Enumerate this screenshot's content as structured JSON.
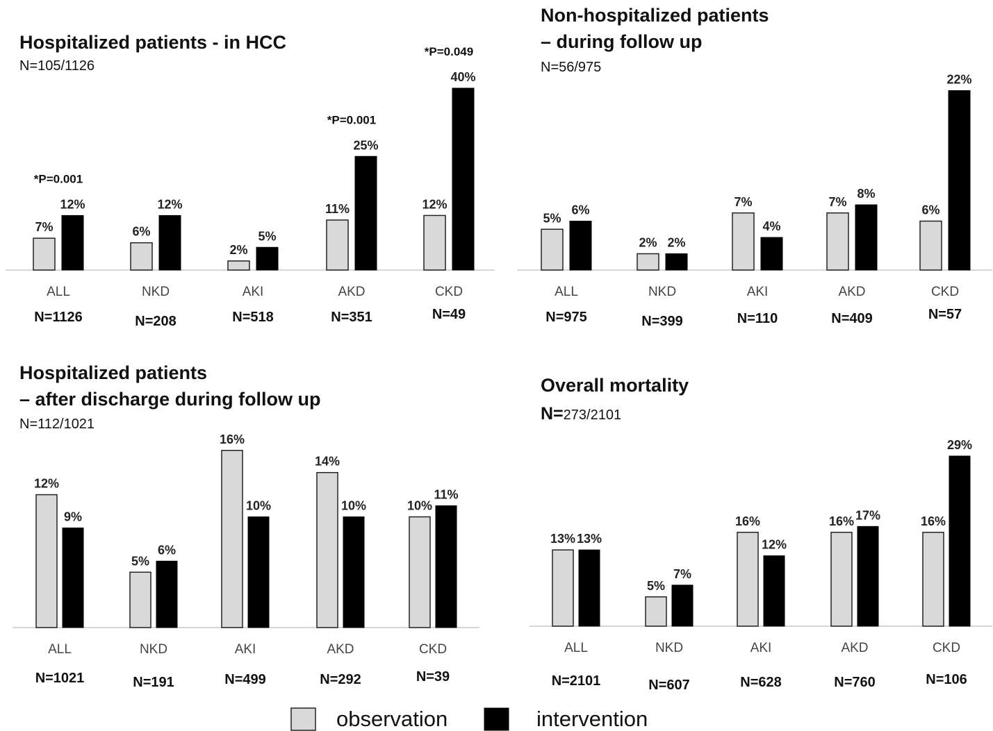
{
  "legend": [
    {
      "label": "observation",
      "color": "#d9d9d9"
    },
    {
      "label": "intervention",
      "color": "#000000"
    }
  ],
  "chart_data": [
    {
      "type": "bar",
      "title": "Hospitalized patients - in HCC",
      "subtitle": "N=105/1126",
      "categories": [
        "ALL",
        "NKD",
        "AKI",
        "AKD",
        "CKD"
      ],
      "n_labels": [
        "N=1126",
        "N=208",
        "N=518",
        "N=351",
        "N=49"
      ],
      "series": [
        {
          "name": "observation",
          "values": [
            7,
            6,
            2,
            11,
            12
          ],
          "labels": [
            "7%",
            "6%",
            "2%",
            "11%",
            "12%"
          ]
        },
        {
          "name": "intervention",
          "values": [
            12,
            12,
            5,
            25,
            40
          ],
          "labels": [
            "12%",
            "12%",
            "5%",
            "25%",
            "40%"
          ]
        }
      ],
      "annotations": [
        "*P=0.001",
        "",
        "",
        "*P=0.001",
        "*P=0.049"
      ],
      "unit": "%"
    },
    {
      "type": "bar",
      "title": "Non-hospitalized patients\n– during follow up",
      "subtitle": "N=56/975",
      "categories": [
        "ALL",
        "NKD",
        "AKI",
        "AKD",
        "CKD"
      ],
      "n_labels": [
        "N=975",
        "N=399",
        "N=110",
        "N=409",
        "N=57"
      ],
      "series": [
        {
          "name": "observation",
          "values": [
            5,
            2,
            7,
            7,
            6
          ],
          "labels": [
            "5%",
            "2%",
            "7%",
            "7%",
            "6%"
          ]
        },
        {
          "name": "intervention",
          "values": [
            6,
            2,
            4,
            8,
            22
          ],
          "labels": [
            "6%",
            "2%",
            "4%",
            "8%",
            "22%"
          ]
        }
      ],
      "annotations": [
        "",
        "",
        "",
        "",
        ""
      ],
      "unit": "%"
    },
    {
      "type": "bar",
      "title": "Hospitalized patients\n– after discharge during follow up",
      "subtitle": "N=112/1021",
      "categories": [
        "ALL",
        "NKD",
        "AKI",
        "AKD",
        "CKD"
      ],
      "n_labels": [
        "N=1021",
        "N=191",
        "N=499",
        "N=292",
        "N=39"
      ],
      "series": [
        {
          "name": "observation",
          "values": [
            12,
            5,
            16,
            14,
            10
          ],
          "labels": [
            "12%",
            "5%",
            "16%",
            "14%",
            "10%"
          ]
        },
        {
          "name": "intervention",
          "values": [
            9,
            6,
            10,
            10,
            11
          ],
          "labels": [
            "9%",
            "6%",
            "10%",
            "10%",
            "11%"
          ]
        }
      ],
      "annotations": [
        "",
        "",
        "",
        "",
        ""
      ],
      "unit": "%"
    },
    {
      "type": "bar",
      "title": "Overall mortality",
      "subtitle_prefix": "N=",
      "subtitle_rest": "273/2101",
      "categories": [
        "ALL",
        "NKD",
        "AKI",
        "AKD",
        "CKD"
      ],
      "n_labels": [
        "N=2101",
        "N=607",
        "N=628",
        "N=760",
        "N=106"
      ],
      "series": [
        {
          "name": "observation",
          "values": [
            13,
            5,
            16,
            16,
            16
          ],
          "labels": [
            "13%",
            "5%",
            "16%",
            "16%",
            "16%"
          ]
        },
        {
          "name": "intervention",
          "values": [
            13,
            7,
            12,
            17,
            29
          ],
          "labels": [
            "13%",
            "7%",
            "12%",
            "17%",
            "29%"
          ]
        }
      ],
      "annotations": [
        "",
        "",
        "",
        "",
        ""
      ],
      "unit": "%"
    }
  ]
}
